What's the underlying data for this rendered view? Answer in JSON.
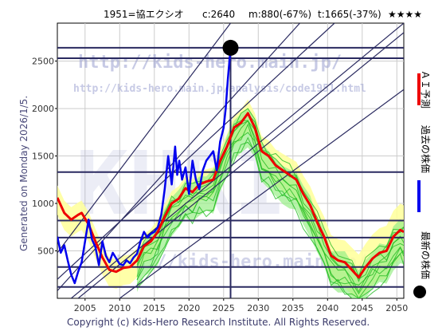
{
  "header": {
    "code_name": "1951=協エクシオ",
    "current": "c:2640",
    "m_stat": "m:880(-67%)",
    "t_stat": "t:1665(-37%)",
    "stars": "★★★★"
  },
  "side_caption": "Generated on Monday 2026/1/5.",
  "footer": "Copyright (c) Kids-Hero Research Institute. All Rights Reserved.",
  "watermarks": {
    "url1": "http://kids-hero.main.jp/",
    "url2": "http://kids-hero.main.jp/analysis/code1951.html",
    "url3": "http://kids-hero.main.jp/",
    "logo": "KHRI"
  },
  "legend": {
    "ai_forecast": "ＡＩ予測",
    "past_price": "過去の株価",
    "latest_price": "最新の株価"
  },
  "colors": {
    "past": "#0000ee",
    "forecast": "#ee0000",
    "band_fill": "#ffff99",
    "sim_green": "#22bb22",
    "sim_fill": "#99ee88",
    "trend_line": "#2a2a60",
    "grid": "#cccccc",
    "latest_marker": "#000000"
  },
  "chart_data": {
    "type": "line",
    "xlim": [
      2001,
      2051
    ],
    "ylim": [
      0,
      2900
    ],
    "x_ticks": [
      2005,
      2010,
      2015,
      2020,
      2025,
      2030,
      2035,
      2040,
      2045,
      2050
    ],
    "y_ticks": [
      500,
      1000,
      1500,
      2000,
      2500
    ],
    "latest_point": {
      "x": 2026.0,
      "y": 2640
    },
    "horizontal_levels": [
      120,
      330,
      640,
      820,
      1330,
      2530,
      2640
    ],
    "vertical_marker_x": 2026.0,
    "trend_lines": [
      {
        "x": [
          2001,
          2036
        ],
        "y": [
          80,
          2900
        ]
      },
      {
        "x": [
          2001,
          2041
        ],
        "y": [
          200,
          2900
        ]
      },
      {
        "x": [
          2003,
          2051
        ],
        "y": [
          0,
          2900
        ]
      },
      {
        "x": [
          2010,
          2051
        ],
        "y": [
          0,
          2200
        ]
      },
      {
        "x": [
          2004,
          2051
        ],
        "y": [
          0,
          2800
        ]
      },
      {
        "x": [
          2001,
          2026
        ],
        "y": [
          480,
          2900
        ]
      }
    ],
    "series": [
      {
        "name": "過去の株価",
        "x": [
          2001.0,
          2001.5,
          2002.0,
          2002.5,
          2003.0,
          2003.5,
          2004.0,
          2004.5,
          2005.0,
          2005.5,
          2006.0,
          2006.5,
          2007.0,
          2007.5,
          2008.0,
          2008.5,
          2009.0,
          2009.5,
          2010.0,
          2010.5,
          2011.0,
          2011.5,
          2012.0,
          2012.5,
          2013.0,
          2013.5,
          2014.0,
          2014.5,
          2015.0,
          2015.5,
          2016.0,
          2016.5,
          2017.0,
          2017.5,
          2018.0,
          2018.3,
          2018.6,
          2019.0,
          2019.5,
          2020.0,
          2020.5,
          2021.0,
          2021.5,
          2022.0,
          2022.5,
          2023.0,
          2023.5,
          2024.0,
          2024.5,
          2025.0,
          2025.3,
          2025.6,
          2026.0
        ],
        "y": [
          650,
          480,
          560,
          400,
          250,
          160,
          280,
          380,
          600,
          830,
          620,
          540,
          350,
          600,
          450,
          380,
          480,
          420,
          360,
          350,
          400,
          370,
          430,
          470,
          600,
          700,
          640,
          680,
          700,
          750,
          880,
          1150,
          1500,
          1200,
          1600,
          1300,
          1450,
          1250,
          1380,
          1100,
          1450,
          1250,
          1150,
          1350,
          1450,
          1500,
          1550,
          1350,
          1650,
          1800,
          2000,
          2300,
          2640
        ]
      },
      {
        "name": "ＡＩ予測",
        "x": [
          2001.0,
          2002.0,
          2003.0,
          2004.0,
          2004.5,
          2005.5,
          2006.5,
          2007.5,
          2008.5,
          2009.5,
          2010.5,
          2011.5,
          2012.5,
          2013.5,
          2014.5,
          2015.5,
          2016.5,
          2017.5,
          2018.5,
          2019.5,
          2020.5,
          2021.5,
          2022.5,
          2023.5,
          2024.5,
          2025.5,
          2026.5,
          2027.5,
          2028.5,
          2029.5,
          2030.5,
          2031.5,
          2032.5,
          2033.5,
          2034.5,
          2035.5,
          2036.5,
          2037.5,
          2038.5,
          2039.5,
          2040.5,
          2041.5,
          2042.5,
          2043.5,
          2044.5,
          2045.5,
          2046.5,
          2047.5,
          2048.5,
          2049.5,
          2050.5,
          2051.0
        ],
        "y": [
          1060,
          900,
          830,
          880,
          900,
          780,
          600,
          430,
          300,
          280,
          320,
          330,
          400,
          550,
          600,
          700,
          860,
          1000,
          1050,
          1160,
          1120,
          1200,
          1230,
          1250,
          1450,
          1600,
          1800,
          1850,
          1950,
          1800,
          1550,
          1500,
          1400,
          1350,
          1300,
          1250,
          1100,
          980,
          800,
          650,
          450,
          400,
          380,
          300,
          220,
          330,
          420,
          480,
          500,
          650,
          720,
          700
        ]
      }
    ]
  }
}
